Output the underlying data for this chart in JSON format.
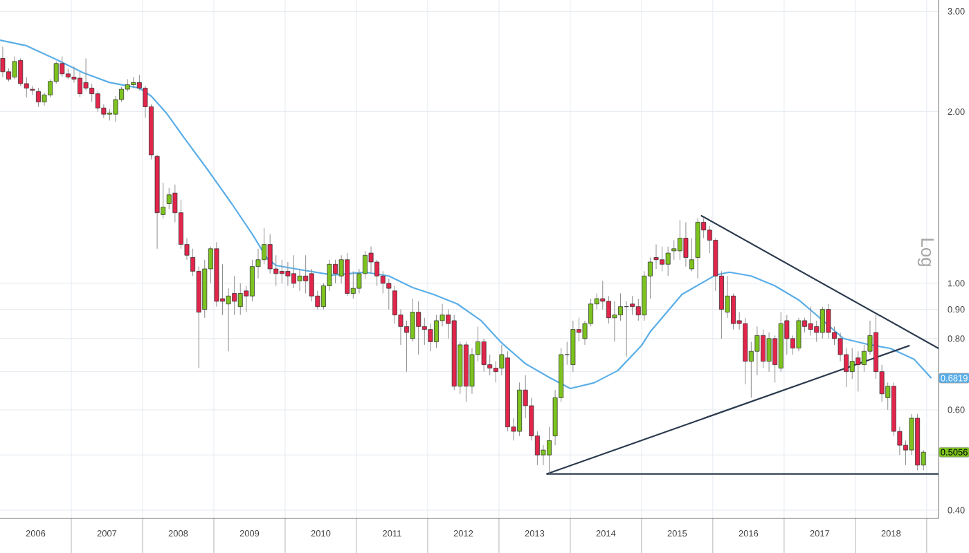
{
  "chart_data": {
    "type": "candlestick",
    "ylabel": "Log",
    "log": "y",
    "grid": true,
    "xlim": [
      "2006-01-01",
      "2019-03-01"
    ],
    "xticks": [
      {
        "value": "2006-07-01",
        "label": "2006"
      },
      {
        "value": "2007-07-01",
        "label": "2007"
      },
      {
        "value": "2008-07-01",
        "label": "2008"
      },
      {
        "value": "2009-07-01",
        "label": "2009"
      },
      {
        "value": "2010-07-01",
        "label": "2010"
      },
      {
        "value": "2011-07-01",
        "label": "2011"
      },
      {
        "value": "2012-07-01",
        "label": "2012"
      },
      {
        "value": "2013-07-01",
        "label": "2013"
      },
      {
        "value": "2014-07-01",
        "label": "2014"
      },
      {
        "value": "2015-07-01",
        "label": "2015"
      },
      {
        "value": "2016-07-01",
        "label": "2016"
      },
      {
        "value": "2017-07-01",
        "label": "2017"
      },
      {
        "value": "2018-07-01",
        "label": "2018"
      },
      {
        "value": "2007-01-01",
        "label": null
      },
      {
        "value": "2008-01-01",
        "label": null
      },
      {
        "value": "2009-01-01",
        "label": null
      },
      {
        "value": "2010-01-01",
        "label": null
      },
      {
        "value": "2011-01-01",
        "label": null
      },
      {
        "value": "2012-01-01",
        "label": null
      },
      {
        "value": "2013-01-01",
        "label": null
      },
      {
        "value": "2014-01-01",
        "label": null
      },
      {
        "value": "2015-01-01",
        "label": null
      },
      {
        "value": "2016-01-01",
        "label": null
      },
      {
        "value": "2017-01-01",
        "label": null
      },
      {
        "value": "2018-01-01",
        "label": null
      },
      {
        "value": "2019-01-01",
        "label": null
      }
    ],
    "ylim": [
      0.387,
      3.14
    ],
    "yticks": [
      {
        "value": 0.4,
        "label": "0.40"
      },
      {
        "value": 0.5,
        "label": null
      },
      {
        "value": 0.6,
        "label": "0.60"
      },
      {
        "value": 0.7,
        "label": null
      },
      {
        "value": 0.8,
        "label": "0.80"
      },
      {
        "value": 0.9,
        "label": "0.90"
      },
      {
        "value": 1,
        "label": "1.00"
      },
      {
        "value": 2,
        "label": "2.00"
      },
      {
        "value": 3,
        "label": "3.00"
      }
    ],
    "annotations": [
      {
        "text": "0.6819",
        "x": "2019-01-25",
        "y": 0.6819
      },
      {
        "text": "0.5056",
        "x": "2018-12-15",
        "y": 0.5056
      }
    ],
    "x": [
      "2006-01-15",
      "2006-02-15",
      "2006-03-15",
      "2006-04-15",
      "2006-05-15",
      "2006-06-15",
      "2006-07-15",
      "2006-08-15",
      "2006-09-15",
      "2006-10-15",
      "2006-11-15",
      "2006-12-15",
      "2007-01-15",
      "2007-02-15",
      "2007-03-15",
      "2007-04-15",
      "2007-05-15",
      "2007-06-15",
      "2007-07-15",
      "2007-08-15",
      "2007-09-15",
      "2007-10-15",
      "2007-11-15",
      "2007-12-15",
      "2008-01-15",
      "2008-02-15",
      "2008-03-15",
      "2008-04-15",
      "2008-05-15",
      "2008-06-15",
      "2008-07-15",
      "2008-08-15",
      "2008-09-15",
      "2008-10-15",
      "2008-11-15",
      "2008-12-15",
      "2009-01-15",
      "2009-02-15",
      "2009-03-15",
      "2009-04-15",
      "2009-05-15",
      "2009-06-15",
      "2009-07-15",
      "2009-08-15",
      "2009-09-15",
      "2009-10-15",
      "2009-11-15",
      "2009-12-15",
      "2010-01-15",
      "2010-02-15",
      "2010-03-15",
      "2010-04-15",
      "2010-05-15",
      "2010-06-15",
      "2010-07-15",
      "2010-08-15",
      "2010-09-15",
      "2010-10-15",
      "2010-11-15",
      "2010-12-15",
      "2011-01-15",
      "2011-02-15",
      "2011-03-15",
      "2011-04-15",
      "2011-05-15",
      "2011-06-15",
      "2011-07-15",
      "2011-08-15",
      "2011-09-15",
      "2011-10-15",
      "2011-11-15",
      "2011-12-15",
      "2012-01-15",
      "2012-02-15",
      "2012-03-15",
      "2012-04-15",
      "2012-05-15",
      "2012-06-15",
      "2012-07-15",
      "2012-08-15",
      "2012-09-15",
      "2012-10-15",
      "2012-11-15",
      "2012-12-15",
      "2013-01-15",
      "2013-02-15",
      "2013-03-15",
      "2013-04-15",
      "2013-05-15",
      "2013-06-15",
      "2013-07-15",
      "2013-08-15",
      "2013-09-15",
      "2013-10-15",
      "2013-11-15",
      "2013-12-15",
      "2014-01-15",
      "2014-02-15",
      "2014-03-15",
      "2014-04-15",
      "2014-05-15",
      "2014-06-15",
      "2014-07-15",
      "2014-08-15",
      "2014-09-15",
      "2014-10-15",
      "2014-11-15",
      "2014-12-15",
      "2015-01-15",
      "2015-02-15",
      "2015-03-15",
      "2015-04-15",
      "2015-05-15",
      "2015-06-15",
      "2015-07-15",
      "2015-08-15",
      "2015-09-15",
      "2015-10-15",
      "2015-11-15",
      "2015-12-15",
      "2016-01-15",
      "2016-02-15",
      "2016-03-15",
      "2016-04-15",
      "2016-05-15",
      "2016-06-15",
      "2016-07-15",
      "2016-08-15",
      "2016-09-15",
      "2016-10-15",
      "2016-11-15",
      "2016-12-15",
      "2017-01-15",
      "2017-02-15",
      "2017-03-15",
      "2017-04-15",
      "2017-05-15",
      "2017-06-15",
      "2017-07-15",
      "2017-08-15",
      "2017-09-15",
      "2017-10-15",
      "2017-11-15",
      "2017-12-15",
      "2018-01-15",
      "2018-02-15",
      "2018-03-15",
      "2018-04-15",
      "2018-05-15",
      "2018-06-15",
      "2018-07-15",
      "2018-08-15",
      "2018-09-15",
      "2018-10-15",
      "2018-11-15",
      "2018-12-15"
    ],
    "ohlc": [
      [
        2.48,
        2.6,
        2.3,
        2.35
      ],
      [
        2.35,
        2.38,
        2.26,
        2.28
      ],
      [
        2.3,
        2.5,
        2.28,
        2.45
      ],
      [
        2.46,
        2.48,
        2.22,
        2.24
      ],
      [
        2.24,
        2.3,
        2.12,
        2.2
      ],
      [
        2.19,
        2.22,
        2.14,
        2.18
      ],
      [
        2.17,
        2.2,
        2.04,
        2.08
      ],
      [
        2.08,
        2.16,
        2.05,
        2.14
      ],
      [
        2.14,
        2.28,
        2.12,
        2.26
      ],
      [
        2.26,
        2.45,
        2.24,
        2.43
      ],
      [
        2.43,
        2.5,
        2.3,
        2.33
      ],
      [
        2.33,
        2.38,
        2.28,
        2.3
      ],
      [
        2.3,
        2.4,
        2.25,
        2.28
      ],
      [
        2.29,
        2.35,
        2.12,
        2.15
      ],
      [
        2.25,
        2.48,
        2.18,
        2.2
      ],
      [
        2.2,
        2.24,
        2.08,
        2.15
      ],
      [
        2.15,
        2.17,
        2.0,
        2.03
      ],
      [
        2.03,
        2.06,
        1.95,
        1.98
      ],
      [
        1.98,
        2.02,
        1.93,
        1.99
      ],
      [
        1.98,
        2.13,
        1.92,
        2.1
      ],
      [
        2.1,
        2.21,
        2.08,
        2.19
      ],
      [
        2.19,
        2.28,
        2.17,
        2.23
      ],
      [
        2.23,
        2.3,
        2.2,
        2.25
      ],
      [
        2.25,
        2.32,
        2.18,
        2.2
      ],
      [
        2.2,
        2.22,
        1.95,
        2.04
      ],
      [
        2.04,
        2.06,
        1.65,
        1.68
      ],
      [
        1.67,
        1.68,
        1.15,
        1.33
      ],
      [
        1.32,
        1.5,
        1.3,
        1.36
      ],
      [
        1.38,
        1.47,
        1.35,
        1.43
      ],
      [
        1.44,
        1.49,
        1.28,
        1.33
      ],
      [
        1.33,
        1.4,
        1.15,
        1.17
      ],
      [
        1.17,
        1.2,
        1.1,
        1.12
      ],
      [
        1.11,
        1.15,
        1.03,
        1.05
      ],
      [
        1.05,
        1.07,
        0.71,
        0.89
      ],
      [
        0.9,
        1.1,
        0.87,
        1.06
      ],
      [
        1.06,
        1.16,
        1.0,
        1.15
      ],
      [
        1.15,
        1.18,
        0.91,
        0.93
      ],
      [
        0.94,
        1.08,
        0.88,
        0.93
      ],
      [
        0.92,
        0.98,
        0.76,
        0.95
      ],
      [
        0.96,
        1.03,
        0.88,
        0.93
      ],
      [
        0.91,
        1.0,
        0.88,
        0.96
      ],
      [
        0.97,
        0.99,
        0.89,
        0.95
      ],
      [
        0.95,
        1.1,
        0.93,
        1.07
      ],
      [
        1.07,
        1.15,
        1.02,
        1.1
      ],
      [
        1.1,
        1.25,
        1.08,
        1.17
      ],
      [
        1.17,
        1.22,
        1.04,
        1.06
      ],
      [
        1.06,
        1.12,
        0.99,
        1.04
      ],
      [
        1.05,
        1.1,
        1.0,
        1.04
      ],
      [
        1.05,
        1.09,
        0.99,
        1.03
      ],
      [
        1.04,
        1.12,
        0.98,
        1.0
      ],
      [
        1.01,
        1.06,
        0.97,
        1.03
      ],
      [
        1.03,
        1.12,
        0.96,
        1.01
      ],
      [
        1.04,
        1.06,
        0.93,
        0.95
      ],
      [
        0.95,
        0.97,
        0.9,
        0.91
      ],
      [
        0.91,
        1.0,
        0.9,
        0.99
      ],
      [
        0.99,
        1.1,
        0.97,
        1.08
      ],
      [
        1.08,
        1.1,
        1.0,
        1.04
      ],
      [
        1.03,
        1.12,
        1.0,
        1.1
      ],
      [
        1.1,
        1.13,
        0.95,
        0.96
      ],
      [
        0.96,
        1.05,
        0.94,
        0.98
      ],
      [
        0.98,
        1.06,
        0.96,
        1.04
      ],
      [
        1.04,
        1.14,
        1.02,
        1.12
      ],
      [
        1.13,
        1.16,
        1.04,
        1.09
      ],
      [
        1.09,
        1.1,
        0.99,
        1.03
      ],
      [
        1.03,
        1.05,
        0.96,
        1.0
      ],
      [
        1.0,
        1.02,
        0.9,
        0.98
      ],
      [
        0.97,
        0.99,
        0.85,
        0.88
      ],
      [
        0.88,
        0.9,
        0.78,
        0.84
      ],
      [
        0.84,
        0.86,
        0.7,
        0.82
      ],
      [
        0.8,
        0.94,
        0.79,
        0.89
      ],
      [
        0.89,
        0.93,
        0.75,
        0.84
      ],
      [
        0.84,
        0.87,
        0.78,
        0.83
      ],
      [
        0.83,
        0.85,
        0.76,
        0.79
      ],
      [
        0.79,
        0.88,
        0.77,
        0.86
      ],
      [
        0.86,
        0.92,
        0.84,
        0.88
      ],
      [
        0.88,
        0.9,
        0.8,
        0.85
      ],
      [
        0.86,
        0.88,
        0.65,
        0.66
      ],
      [
        0.66,
        0.79,
        0.64,
        0.78
      ],
      [
        0.78,
        0.79,
        0.62,
        0.66
      ],
      [
        0.66,
        0.77,
        0.64,
        0.75
      ],
      [
        0.75,
        0.84,
        0.73,
        0.79
      ],
      [
        0.79,
        0.8,
        0.7,
        0.72
      ],
      [
        0.72,
        0.75,
        0.69,
        0.71
      ],
      [
        0.71,
        0.73,
        0.67,
        0.7
      ],
      [
        0.71,
        0.78,
        0.69,
        0.75
      ],
      [
        0.74,
        0.76,
        0.55,
        0.56
      ],
      [
        0.56,
        0.58,
        0.53,
        0.55
      ],
      [
        0.55,
        0.67,
        0.54,
        0.65
      ],
      [
        0.65,
        0.69,
        0.58,
        0.61
      ],
      [
        0.61,
        0.63,
        0.53,
        0.54
      ],
      [
        0.54,
        0.55,
        0.48,
        0.5
      ],
      [
        0.5,
        0.52,
        0.48,
        0.51
      ],
      [
        0.5,
        0.56,
        0.463,
        0.53
      ],
      [
        0.54,
        0.65,
        0.52,
        0.63
      ],
      [
        0.63,
        0.77,
        0.62,
        0.75
      ],
      [
        0.75,
        0.79,
        0.72,
        0.75
      ],
      [
        0.72,
        0.86,
        0.7,
        0.83
      ],
      [
        0.83,
        0.87,
        0.79,
        0.82
      ],
      [
        0.8,
        0.86,
        0.78,
        0.85
      ],
      [
        0.85,
        0.94,
        0.84,
        0.92
      ],
      [
        0.92,
        0.96,
        0.9,
        0.94
      ],
      [
        0.94,
        1.01,
        0.9,
        0.93
      ],
      [
        0.93,
        0.95,
        0.85,
        0.87
      ],
      [
        0.87,
        0.93,
        0.79,
        0.88
      ],
      [
        0.88,
        0.96,
        0.86,
        0.91
      ],
      [
        0.91,
        0.93,
        0.744,
        0.91
      ],
      [
        0.92,
        0.95,
        0.88,
        0.91
      ],
      [
        0.91,
        0.94,
        0.86,
        0.88
      ],
      [
        0.88,
        1.05,
        0.86,
        1.03
      ],
      [
        1.03,
        1.11,
        0.94,
        1.09
      ],
      [
        1.11,
        1.17,
        1.06,
        1.1
      ],
      [
        1.1,
        1.16,
        1.05,
        1.08
      ],
      [
        1.08,
        1.16,
        1.03,
        1.13
      ],
      [
        1.14,
        1.19,
        1.1,
        1.15
      ],
      [
        1.14,
        1.29,
        1.1,
        1.2
      ],
      [
        1.2,
        1.28,
        1.07,
        1.11
      ],
      [
        1.06,
        1.2,
        1.05,
        1.1
      ],
      [
        1.11,
        1.3,
        1.02,
        1.28
      ],
      [
        1.28,
        1.3,
        1.2,
        1.24
      ],
      [
        1.24,
        1.26,
        1.13,
        1.19
      ],
      [
        1.19,
        1.2,
        0.97,
        1.03
      ],
      [
        1.03,
        1.05,
        0.8,
        0.9
      ],
      [
        0.89,
        1.03,
        0.87,
        0.95
      ],
      [
        0.95,
        0.96,
        0.83,
        0.85
      ],
      [
        0.86,
        0.89,
        0.83,
        0.85
      ],
      [
        0.85,
        0.87,
        0.665,
        0.73
      ],
      [
        0.73,
        0.79,
        0.63,
        0.76
      ],
      [
        0.76,
        0.84,
        0.69,
        0.81
      ],
      [
        0.81,
        0.83,
        0.71,
        0.73
      ],
      [
        0.73,
        0.82,
        0.7,
        0.8
      ],
      [
        0.8,
        0.81,
        0.67,
        0.72
      ],
      [
        0.71,
        0.89,
        0.7,
        0.85
      ],
      [
        0.86,
        0.88,
        0.75,
        0.8
      ],
      [
        0.8,
        0.81,
        0.75,
        0.77
      ],
      [
        0.77,
        0.87,
        0.76,
        0.86
      ],
      [
        0.86,
        0.87,
        0.82,
        0.84
      ],
      [
        0.85,
        0.91,
        0.81,
        0.83
      ],
      [
        0.84,
        0.86,
        0.79,
        0.82
      ],
      [
        0.82,
        0.91,
        0.8,
        0.9
      ],
      [
        0.9,
        0.92,
        0.8,
        0.82
      ],
      [
        0.82,
        0.84,
        0.78,
        0.8
      ],
      [
        0.8,
        0.82,
        0.73,
        0.75
      ],
      [
        0.75,
        0.77,
        0.658,
        0.7
      ],
      [
        0.7,
        0.77,
        0.68,
        0.73
      ],
      [
        0.74,
        0.76,
        0.646,
        0.72
      ],
      [
        0.72,
        0.78,
        0.7,
        0.76
      ],
      [
        0.76,
        0.86,
        0.75,
        0.81
      ],
      [
        0.82,
        0.88,
        0.68,
        0.7
      ],
      [
        0.7,
        0.72,
        0.62,
        0.64
      ],
      [
        0.63,
        0.67,
        0.6,
        0.66
      ],
      [
        0.66,
        0.67,
        0.54,
        0.55
      ],
      [
        0.55,
        0.56,
        0.5,
        0.52
      ],
      [
        0.52,
        0.53,
        0.48,
        0.51
      ],
      [
        0.51,
        0.59,
        0.5,
        0.58
      ],
      [
        0.58,
        0.59,
        0.47,
        0.48
      ],
      [
        0.48,
        0.51,
        0.47,
        0.5056
      ]
    ],
    "series": [
      {
        "type": "line",
        "color": "#5aaee8",
        "x": [
          "2006-01-01",
          "2006-05-15",
          "2006-10-15",
          "2007-03-01",
          "2007-07-15",
          "2007-12-15",
          "2008-02-15",
          "2008-05-01",
          "2008-08-01",
          "2008-12-01",
          "2009-04-01",
          "2009-07-15",
          "2009-10-01",
          "2009-11-15",
          "2010-03-15",
          "2010-09-01",
          "2011-02-15",
          "2011-06-15",
          "2011-10-15",
          "2012-02-01",
          "2012-06-01",
          "2012-10-01",
          "2013-01-15",
          "2013-05-15",
          "2013-09-15",
          "2014-01-01",
          "2014-05-01",
          "2014-09-01",
          "2015-01-01",
          "2015-02-15",
          "2015-07-25",
          "2016-01-15",
          "2016-03-25",
          "2016-07-15",
          "2016-11-15",
          "2017-03-15",
          "2017-07-01",
          "2017-11-01",
          "2018-03-01",
          "2018-06-28",
          "2018-10-28",
          "2019-01-25"
        ],
        "values": [
          2.67,
          2.61,
          2.47,
          2.34,
          2.25,
          2.2,
          2.13,
          1.99,
          1.8,
          1.58,
          1.38,
          1.22,
          1.105,
          1.075,
          1.057,
          1.034,
          1.046,
          1.03,
          0.983,
          0.956,
          0.92,
          0.86,
          0.786,
          0.723,
          0.684,
          0.654,
          0.669,
          0.703,
          0.778,
          0.822,
          0.956,
          1.034,
          1.046,
          1.03,
          0.99,
          0.935,
          0.87,
          0.8,
          0.782,
          0.769,
          0.736,
          0.6819
        ]
      },
      {
        "type": "line",
        "color": "#2b3a4e",
        "x": [
          "2013-09-01",
          "2019-03-01"
        ],
        "values": [
          0.463,
          0.463
        ]
      },
      {
        "type": "line",
        "color": "#2b3a4e",
        "x": [
          "2013-09-01",
          "2018-10-05"
        ],
        "values": [
          0.463,
          0.778
        ]
      },
      {
        "type": "line",
        "color": "#2b3a4e",
        "x": [
          "2015-11-01",
          "2019-03-01"
        ],
        "values": [
          1.315,
          0.769
        ]
      }
    ]
  }
}
